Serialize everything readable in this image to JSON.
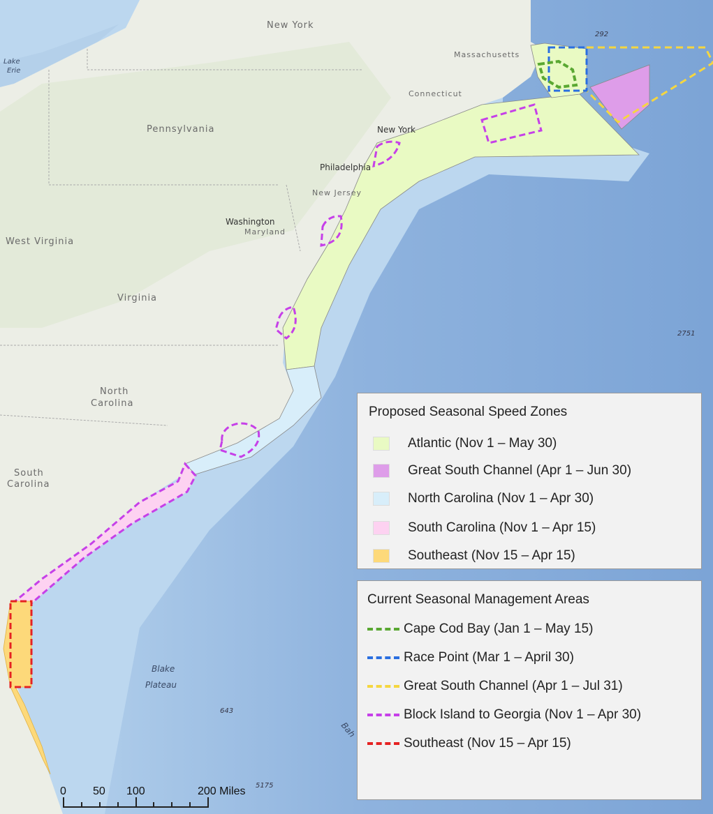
{
  "map": {
    "place_labels": {
      "new_york_state": "New York",
      "massachusetts": "Massachusetts",
      "connecticut": "Connecticut",
      "new_york_city": "New York",
      "philadelphia": "Philadelphia",
      "new_jersey": "New Jersey",
      "pennsylvania": "Pennsylvania",
      "washington": "Washington",
      "maryland": "Maryland",
      "west_virginia": "West Virginia",
      "virginia": "Virginia",
      "north_carolina_1": "North",
      "north_carolina_2": "Carolina",
      "south_carolina_1": "South",
      "south_carolina_2": "Carolina",
      "lake_erie_1": "Lake",
      "lake_erie_2": "Erie",
      "blake_plateau_1": "Blake",
      "blake_plateau_2": "Plateau",
      "bahamas_partial": "Bah"
    },
    "depth_labels": [
      "292",
      "2751",
      "643",
      "5175"
    ],
    "colors": {
      "atlantic": "#e9fac3",
      "great_south_channel": "#de9de9",
      "north_carolina": "#d8eefa",
      "south_carolina": "#fdd2f1",
      "southeast": "#fdd97a",
      "cape_cod_bay_line": "#5aa832",
      "race_point_line": "#2a6fe0",
      "gsc_line": "#f5d640",
      "block_island_line": "#c640e8",
      "southeast_line": "#e52222"
    }
  },
  "legend_proposed": {
    "title": "Proposed Seasonal Speed Zones",
    "items": [
      {
        "label": "Atlantic (Nov 1 – May 30)",
        "color": "#e9fac3"
      },
      {
        "label": "Great South Channel (Apr 1 – Jun 30)",
        "color": "#de9de9"
      },
      {
        "label": "North Carolina (Nov 1 – Apr 30)",
        "color": "#d8eefa"
      },
      {
        "label": "South Carolina (Nov 1 – Apr 15)",
        "color": "#fdd2f1"
      },
      {
        "label": "Southeast (Nov 15 – Apr 15)",
        "color": "#fdd97a"
      }
    ]
  },
  "legend_current": {
    "title": "Current Seasonal Management Areas",
    "items": [
      {
        "label": "Cape Cod Bay (Jan 1 – May 15)",
        "color": "#5aa832"
      },
      {
        "label": "Race Point (Mar 1 – April 30)",
        "color": "#2a6fe0"
      },
      {
        "label": "Great South Channel (Apr 1 – Jul 31)",
        "color": "#f5d640"
      },
      {
        "label": "Block Island to Georgia (Nov 1 – Apr 30)",
        "color": "#c640e8"
      },
      {
        "label": "Southeast (Nov 15 – Apr 15)",
        "color": "#e52222"
      }
    ]
  },
  "scale_bar": {
    "ticks": [
      "0",
      "50",
      "100",
      "200 Miles"
    ]
  }
}
